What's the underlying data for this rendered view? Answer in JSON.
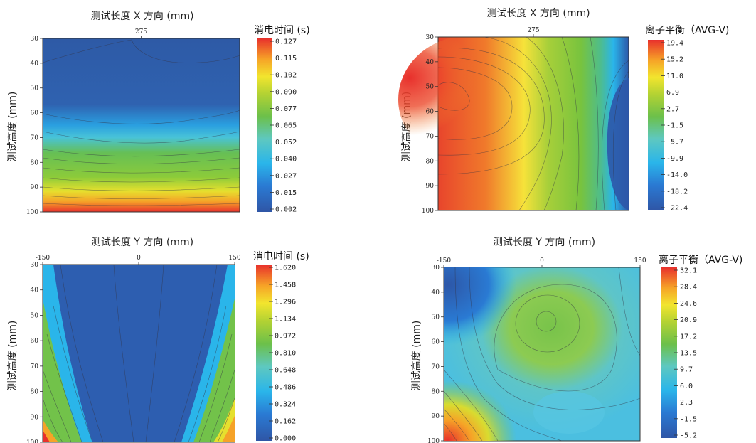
{
  "chart_data": [
    {
      "type": "heatmap",
      "title": "测试长度 X 方向 (mm)",
      "ylabel": "测试高度 (mm)",
      "x_ticks": [
        275
      ],
      "y_ticks": [
        30,
        40,
        50,
        60,
        70,
        80,
        90,
        100
      ],
      "ylim": [
        30,
        100
      ],
      "colorbar": {
        "title": "消电时间 (s)",
        "ticks": [
          "0.127",
          "0.115",
          "0.102",
          "0.090",
          "0.077",
          "0.065",
          "0.052",
          "0.040",
          "0.027",
          "0.015",
          "0.002"
        ]
      },
      "pattern": "bottom-gradient"
    },
    {
      "type": "heatmap",
      "title": "测试长度 X 方向 (mm)",
      "ylabel": "测试高度 (mm)",
      "x_ticks": [
        275
      ],
      "y_ticks": [
        30,
        40,
        50,
        60,
        70,
        80,
        90,
        100
      ],
      "ylim": [
        30,
        100
      ],
      "colorbar": {
        "title": "离子平衡（AVG-V)",
        "ticks": [
          "19.4",
          "15.2",
          "11.0",
          "6.9",
          "2.7",
          "-1.5",
          "-5.7",
          "-9.9",
          "-14.0",
          "-18.2",
          "-22.4"
        ]
      },
      "pattern": "left-hot-right-cold"
    },
    {
      "type": "heatmap",
      "title": "测试长度 Y 方向 (mm)",
      "ylabel": "测试高度 (mm)",
      "x_ticks": [
        -150,
        0,
        150
      ],
      "y_ticks": [
        30,
        40,
        50,
        60,
        70,
        80,
        90,
        100
      ],
      "ylim": [
        30,
        100
      ],
      "colorbar": {
        "title": "消电时间 (s)",
        "ticks": [
          "1.620",
          "1.458",
          "1.296",
          "1.134",
          "0.972",
          "0.810",
          "0.648",
          "0.486",
          "0.324",
          "0.162",
          "0.000"
        ]
      },
      "pattern": "v-shape"
    },
    {
      "type": "heatmap",
      "title": "测试长度 Y 方向 (mm)",
      "ylabel": "测试高度 (mm)",
      "x_ticks": [
        -150,
        0,
        150
      ],
      "y_ticks": [
        30,
        40,
        50,
        60,
        70,
        80,
        90,
        100
      ],
      "ylim": [
        30,
        100
      ],
      "colorbar": {
        "title": "离子平衡（AVG-V)",
        "ticks": [
          "32.1",
          "28.4",
          "24.6",
          "20.9",
          "17.2",
          "13.5",
          "9.7",
          "6.0",
          "2.3",
          "-1.5",
          "-5.2"
        ]
      },
      "pattern": "center-blob"
    }
  ]
}
